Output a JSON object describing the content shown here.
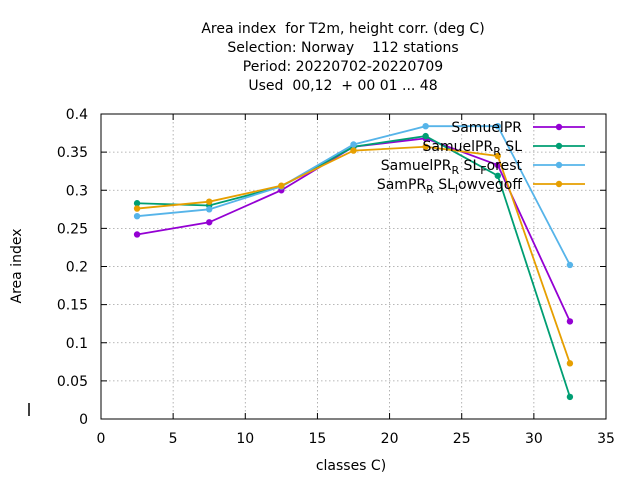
{
  "chart_data": {
    "type": "line",
    "title_lines": [
      "Area index  for T2m, height corr. (deg C)",
      "Selection: Norway    112 stations",
      "Period: 20220702-20220709",
      "Used  00,12  + 00 01 ... 48"
    ],
    "xlabel": "classes C)",
    "ylabel": "Area index",
    "xlim": [
      0,
      35
    ],
    "ylim": [
      0,
      0.4
    ],
    "xticks": [
      0,
      5,
      10,
      15,
      20,
      25,
      30,
      35
    ],
    "xtick_labels": [
      "0",
      "5",
      "10",
      "15",
      "20",
      "25",
      "30",
      "35"
    ],
    "yticks": [
      0,
      0.05,
      0.1,
      0.15,
      0.2,
      0.25,
      0.3,
      0.35,
      0.4
    ],
    "ytick_labels": [
      "0",
      "0.05",
      "0.1",
      "0.15",
      "0.2",
      "0.25",
      "0.3",
      "0.35",
      "0.4"
    ],
    "grid": true,
    "legend_position": "top-right",
    "x": [
      2.5,
      7.5,
      12.5,
      17.5,
      22.5,
      27.5,
      32.5
    ],
    "series": [
      {
        "name": "SamuelPR",
        "color": "#9400d3",
        "values": [
          0.242,
          0.258,
          0.3,
          0.357,
          0.368,
          0.333,
          0.128
        ]
      },
      {
        "name": "SamuelPR_R SL",
        "color": "#009e73",
        "values": [
          0.283,
          0.28,
          0.305,
          0.357,
          0.371,
          0.319,
          0.029
        ]
      },
      {
        "name": "SamuelPR_R SL_Forest",
        "color": "#56b4e9",
        "values": [
          0.266,
          0.275,
          0.305,
          0.36,
          0.384,
          0.384,
          0.202
        ]
      },
      {
        "name": "SamPR_R SL_lowvegoff",
        "color": "#e69f00",
        "values": [
          0.276,
          0.285,
          0.306,
          0.352,
          0.357,
          0.345,
          0.073
        ]
      }
    ]
  }
}
